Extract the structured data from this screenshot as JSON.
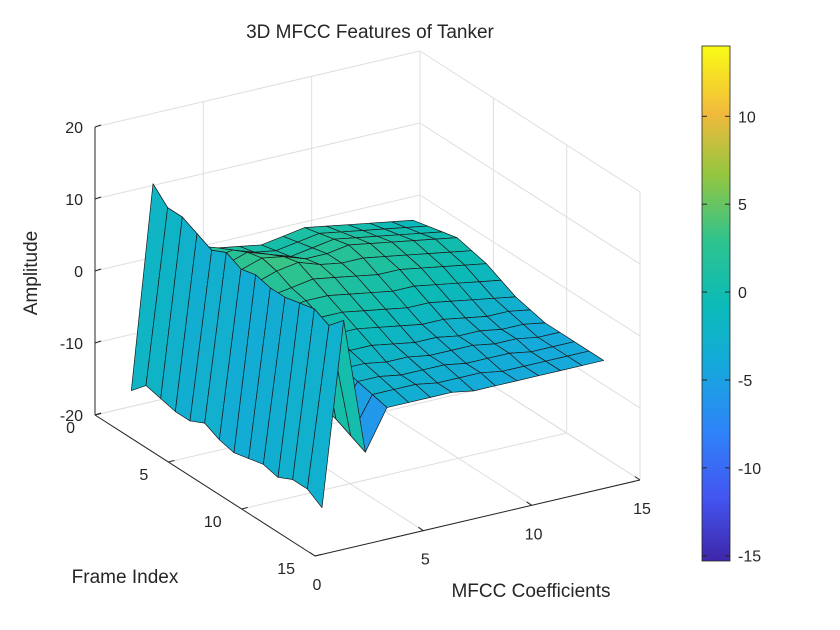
{
  "chart_data": {
    "type": "surface",
    "title": "3D MFCC Features of Tanker",
    "xlabel": "MFCC Coefficients",
    "ylabel": "Frame Index",
    "zlabel": "Amplitude",
    "x_ticks": [
      "0",
      "5",
      "10",
      "15"
    ],
    "y_ticks": [
      "0",
      "5",
      "10",
      "15"
    ],
    "z_ticks": [
      "-20",
      "-10",
      "0",
      "10",
      "20"
    ],
    "xlim": [
      0,
      15
    ],
    "ylim": [
      0,
      15
    ],
    "zlim": [
      -20,
      20
    ],
    "grid": true,
    "colormap": "parula",
    "colorbar": {
      "position": "right",
      "ticks": [
        "-15",
        "-10",
        "-5",
        "0",
        "5",
        "10"
      ],
      "range": [
        -15.3,
        14
      ]
    },
    "x": [
      1,
      2,
      3,
      4,
      5,
      6,
      7,
      8,
      9,
      10,
      11,
      12,
      13,
      14
    ],
    "y": [
      1,
      2,
      3,
      4,
      5,
      6,
      7,
      8,
      9,
      10,
      11,
      12,
      13,
      14
    ],
    "z_note": "rows = frames 1..14, columns = MFCC coefficients 1..14",
    "z": [
      [
        -16,
        12,
        -2,
        2,
        1,
        0.5,
        0,
        0.5,
        1,
        0.5,
        0,
        -0.5,
        -1,
        -1.5
      ],
      [
        -14,
        10,
        -3,
        1.5,
        2,
        1,
        0.5,
        1,
        1.5,
        1,
        0.5,
        0,
        -0.5,
        -1
      ],
      [
        -14.5,
        10,
        -3.5,
        2,
        3,
        2,
        1,
        1.5,
        2,
        1.5,
        1,
        0.5,
        0,
        -0.5
      ],
      [
        -15,
        9,
        -3,
        2.5,
        3.5,
        3,
        2,
        2,
        2.5,
        2,
        1.5,
        1,
        0.5,
        0
      ],
      [
        -15,
        8,
        -4,
        2,
        3,
        3.5,
        2.5,
        2,
        2,
        1.5,
        1,
        0.5,
        0,
        -0.5
      ],
      [
        -14,
        9,
        -3.5,
        1.5,
        2,
        2.5,
        2,
        1.5,
        1,
        1,
        0.5,
        0,
        -0.5,
        -1
      ],
      [
        -15,
        8,
        -4.5,
        1,
        1.5,
        1.5,
        1,
        0.5,
        0,
        0,
        -0.5,
        -1,
        -1.5,
        -2
      ],
      [
        -15.5,
        8.5,
        -5,
        0.5,
        0.5,
        0.5,
        0,
        -0.5,
        -1,
        -1,
        -1.5,
        -2,
        -2.5,
        -3
      ],
      [
        -15,
        8,
        -5.5,
        -0.5,
        -0.5,
        -0.5,
        -1,
        -1.5,
        -2,
        -2,
        -2.5,
        -3,
        -3,
        -3.5
      ],
      [
        -14.5,
        8,
        -6,
        -1,
        -1.5,
        -1.5,
        -2,
        -2.5,
        -2.5,
        -3,
        -3,
        -3.5,
        -3.5,
        -4
      ],
      [
        -15,
        8.5,
        -6.5,
        -2,
        -2,
        -2.5,
        -2.5,
        -3,
        -3,
        -3,
        -3.5,
        -3.5,
        -4,
        -4
      ],
      [
        -14,
        9,
        -7,
        -2.5,
        -2.5,
        -3,
        -3,
        -3,
        -3.5,
        -3.5,
        -3.5,
        -4,
        -4,
        -4
      ],
      [
        -14,
        8,
        -8,
        -3,
        -3,
        -3,
        -3.5,
        -3.5,
        -3.5,
        -4,
        -4,
        -4,
        -4,
        -4
      ],
      [
        -15.3,
        10,
        -9,
        -3.5,
        -3.5,
        -3.5,
        -3.5,
        -4,
        -4,
        -4,
        -4,
        -4,
        -4,
        -4
      ]
    ]
  }
}
